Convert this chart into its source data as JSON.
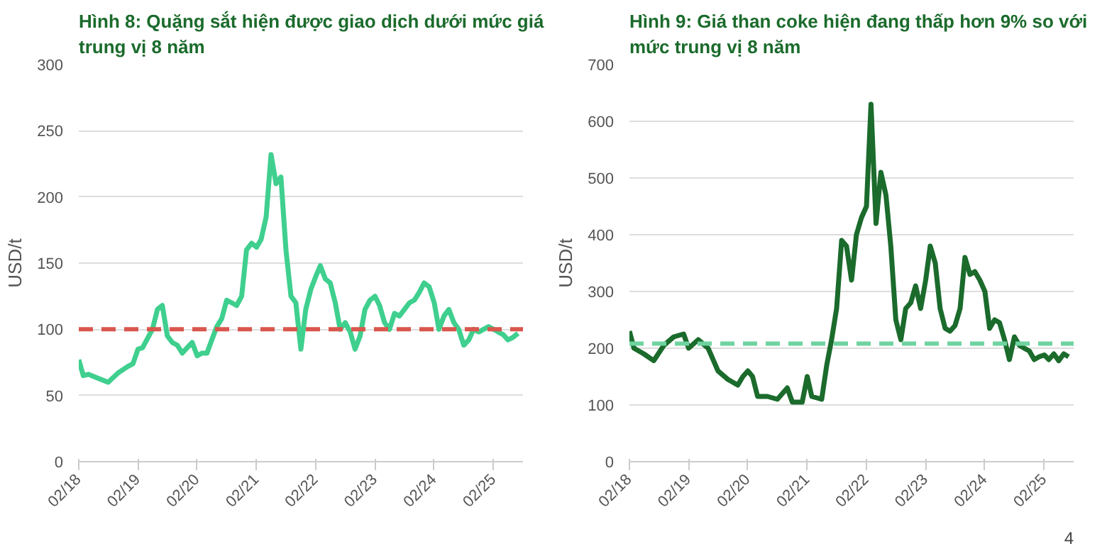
{
  "chart_data": [
    {
      "type": "line",
      "title": "Hình 8: Quặng sắt hiện được giao dịch dưới mức giá trung vị 8 năm",
      "ylabel": "USD/t",
      "x": [
        "2018-02",
        "2018-03",
        "2018-04",
        "2018-06",
        "2018-08",
        "2018-10",
        "2018-12",
        "2019-01",
        "2019-02",
        "2019-03",
        "2019-05",
        "2019-06",
        "2019-07",
        "2019-08",
        "2019-09",
        "2019-10",
        "2019-11",
        "2019-12",
        "2020-01",
        "2020-02",
        "2020-03",
        "2020-04",
        "2020-05",
        "2020-06",
        "2020-07",
        "2020-08",
        "2020-09",
        "2020-10",
        "2020-11",
        "2020-12",
        "2021-01",
        "2021-02",
        "2021-03",
        "2021-04",
        "2021-05",
        "2021-06",
        "2021-07",
        "2021-08",
        "2021-09",
        "2021-10",
        "2021-11",
        "2021-12",
        "2022-01",
        "2022-02",
        "2022-03",
        "2022-04",
        "2022-05",
        "2022-06",
        "2022-07",
        "2022-08",
        "2022-09",
        "2022-10",
        "2022-11",
        "2022-12",
        "2023-01",
        "2023-02",
        "2023-03",
        "2023-04",
        "2023-05",
        "2023-06",
        "2023-07",
        "2023-08",
        "2023-09",
        "2023-10",
        "2023-11",
        "2023-12",
        "2024-01",
        "2024-02",
        "2024-03",
        "2024-04",
        "2024-05",
        "2024-06",
        "2024-07",
        "2024-08",
        "2024-09",
        "2024-10",
        "2024-11",
        "2024-12",
        "2025-01",
        "2025-02",
        "2025-03",
        "2025-04",
        "2025-05",
        "2025-06",
        "2025-07"
      ],
      "series": [
        {
          "color": "#3fcf8e",
          "values": [
            77,
            65,
            66,
            63,
            60,
            67,
            72,
            74,
            85,
            86,
            100,
            115,
            118,
            95,
            90,
            88,
            82,
            86,
            90,
            80,
            82,
            82,
            92,
            102,
            108,
            122,
            120,
            118,
            125,
            160,
            165,
            162,
            168,
            185,
            232,
            210,
            215,
            160,
            125,
            120,
            85,
            115,
            130,
            140,
            148,
            138,
            135,
            120,
            100,
            105,
            98,
            85,
            95,
            115,
            122,
            125,
            118,
            105,
            100,
            112,
            110,
            115,
            120,
            122,
            128,
            135,
            132,
            120,
            100,
            110,
            115,
            105,
            100,
            88,
            92,
            100,
            98,
            100,
            102,
            100,
            98,
            96,
            92,
            94,
            97
          ]
        }
      ],
      "xlim": [
        "2018-02",
        "2025-08"
      ],
      "xticks": [
        {
          "value": "2018-02",
          "label": "02/18"
        },
        {
          "value": "2019-02",
          "label": "02/19"
        },
        {
          "value": "2020-02",
          "label": "02/20"
        },
        {
          "value": "2021-02",
          "label": "02/21"
        },
        {
          "value": "2022-02",
          "label": "02/22"
        },
        {
          "value": "2023-02",
          "label": "02/23"
        },
        {
          "value": "2024-02",
          "label": "02/24"
        },
        {
          "value": "2025-02",
          "label": "02/25"
        }
      ],
      "ylim": [
        0,
        300
      ],
      "yticks": [
        0,
        50,
        100,
        150,
        200,
        250,
        300
      ],
      "ref_lines": [
        {
          "axis": "y",
          "value": 100,
          "color": "#d9574e",
          "line_style": "dashed"
        }
      ],
      "grid": "y"
    },
    {
      "type": "line",
      "title": "Hình 9: Giá than coke hiện đang thấp hơn 9% so với mức trung vị 8 năm",
      "ylabel": "USD/t",
      "x": [
        "2018-02",
        "2018-03",
        "2018-05",
        "2018-07",
        "2018-09",
        "2018-11",
        "2019-01",
        "2019-02",
        "2019-04",
        "2019-06",
        "2019-08",
        "2019-10",
        "2019-12",
        "2020-01",
        "2020-02",
        "2020-03",
        "2020-04",
        "2020-06",
        "2020-08",
        "2020-10",
        "2020-11",
        "2021-01",
        "2021-02",
        "2021-03",
        "2021-05",
        "2021-06",
        "2021-07",
        "2021-08",
        "2021-09",
        "2021-10",
        "2021-11",
        "2021-12",
        "2022-01",
        "2022-02",
        "2022-03",
        "2022-04",
        "2022-05",
        "2022-06",
        "2022-07",
        "2022-08",
        "2022-09",
        "2022-10",
        "2022-11",
        "2022-12",
        "2023-01",
        "2023-02",
        "2023-03",
        "2023-04",
        "2023-05",
        "2023-06",
        "2023-07",
        "2023-08",
        "2023-09",
        "2023-10",
        "2023-11",
        "2023-12",
        "2024-01",
        "2024-02",
        "2024-03",
        "2024-04",
        "2024-05",
        "2024-06",
        "2024-07",
        "2024-08",
        "2024-09",
        "2024-10",
        "2024-11",
        "2024-12",
        "2025-01",
        "2025-02",
        "2025-03",
        "2025-04",
        "2025-05",
        "2025-06",
        "2025-07"
      ],
      "series": [
        {
          "color": "#1b6b2c",
          "values": [
            230,
            200,
            190,
            178,
            205,
            220,
            225,
            200,
            215,
            200,
            160,
            145,
            135,
            150,
            160,
            150,
            115,
            115,
            110,
            130,
            105,
            105,
            150,
            115,
            110,
            170,
            215,
            270,
            390,
            380,
            320,
            400,
            430,
            450,
            630,
            420,
            510,
            470,
            380,
            250,
            215,
            270,
            280,
            310,
            270,
            320,
            380,
            350,
            270,
            235,
            230,
            240,
            270,
            360,
            330,
            335,
            320,
            300,
            235,
            250,
            245,
            215,
            180,
            220,
            205,
            200,
            195,
            180,
            185,
            188,
            180,
            190,
            178,
            190,
            185
          ]
        }
      ],
      "xlim": [
        "2018-02",
        "2025-08"
      ],
      "xticks": [
        {
          "value": "2018-02",
          "label": "02/18"
        },
        {
          "value": "2019-02",
          "label": "02/19"
        },
        {
          "value": "2020-02",
          "label": "02/20"
        },
        {
          "value": "2021-02",
          "label": "02/21"
        },
        {
          "value": "2022-02",
          "label": "02/22"
        },
        {
          "value": "2023-02",
          "label": "02/23"
        },
        {
          "value": "2024-02",
          "label": "02/24"
        },
        {
          "value": "2025-02",
          "label": "02/25"
        }
      ],
      "ylim": [
        0,
        700
      ],
      "yticks": [
        0,
        100,
        200,
        300,
        400,
        500,
        600,
        700
      ],
      "ref_lines": [
        {
          "axis": "y",
          "value": 208,
          "color": "#6fd3a0",
          "line_style": "dashed"
        }
      ],
      "annotations": [
        "4"
      ],
      "grid": "y"
    }
  ]
}
